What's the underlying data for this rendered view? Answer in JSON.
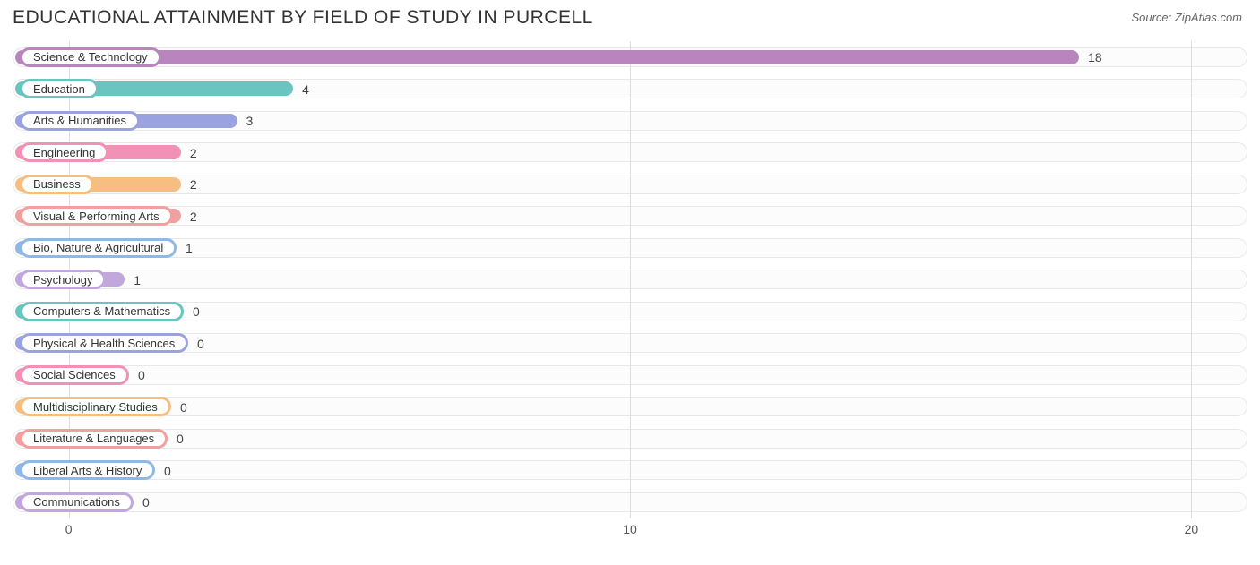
{
  "title": "EDUCATIONAL ATTAINMENT BY FIELD OF STUDY IN PURCELL",
  "source": "Source: ZipAtlas.com",
  "chart": {
    "type": "bar-horizontal",
    "x_min": -1,
    "x_max": 21,
    "x_ticks": [
      0,
      10,
      20
    ],
    "track_background": "#fcfcfc",
    "track_border": "#e8e8e8",
    "pill_background": "#ffffff",
    "rows": [
      {
        "label": "Science & Technology",
        "value": 18,
        "color": "#b886bd"
      },
      {
        "label": "Education",
        "value": 4,
        "color": "#6bc4c0"
      },
      {
        "label": "Arts & Humanities",
        "value": 3,
        "color": "#9aa3e0"
      },
      {
        "label": "Engineering",
        "value": 2,
        "color": "#f191b5"
      },
      {
        "label": "Business",
        "value": 2,
        "color": "#f7be81"
      },
      {
        "label": "Visual & Performing Arts",
        "value": 2,
        "color": "#f1a0a0"
      },
      {
        "label": "Bio, Nature & Agricultural",
        "value": 1,
        "color": "#8fb9e4"
      },
      {
        "label": "Psychology",
        "value": 1,
        "color": "#c1a7db"
      },
      {
        "label": "Computers & Mathematics",
        "value": 0,
        "color": "#6bc4c0"
      },
      {
        "label": "Physical & Health Sciences",
        "value": 0,
        "color": "#9aa3e0"
      },
      {
        "label": "Social Sciences",
        "value": 0,
        "color": "#f191b5"
      },
      {
        "label": "Multidisciplinary Studies",
        "value": 0,
        "color": "#f7be81"
      },
      {
        "label": "Literature & Languages",
        "value": 0,
        "color": "#f1a0a0"
      },
      {
        "label": "Liberal Arts & History",
        "value": 0,
        "color": "#8fb9e4"
      },
      {
        "label": "Communications",
        "value": 0,
        "color": "#c1a7db"
      }
    ]
  }
}
